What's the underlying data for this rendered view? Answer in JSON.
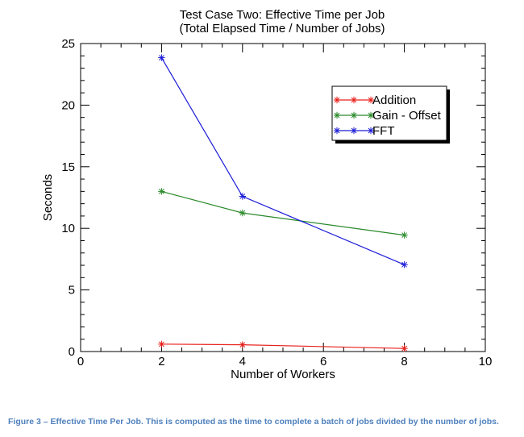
{
  "chart_data": {
    "type": "line",
    "title": "Test Case Two: Effective Time per Job",
    "subtitle": "(Total Elapsed Time / Number of Jobs)",
    "xlabel": "Number of Workers",
    "ylabel": "Seconds",
    "xlim": [
      0,
      10
    ],
    "ylim": [
      0,
      25
    ],
    "x_ticks": [
      "0",
      "2",
      "4",
      "6",
      "8",
      "10"
    ],
    "y_ticks": [
      "0",
      "5",
      "10",
      "15",
      "20",
      "25"
    ],
    "legend_position": "top-right",
    "grid": false,
    "series": [
      {
        "name": "Addition",
        "color": "#e8201c",
        "x": [
          2,
          4,
          8
        ],
        "values": [
          0.6,
          0.55,
          0.25
        ]
      },
      {
        "name": "Gain - Offset",
        "color": "#2a8a2a",
        "x": [
          2,
          4,
          8
        ],
        "values": [
          13.0,
          11.25,
          9.45
        ]
      },
      {
        "name": "FFT",
        "color": "#1c1cd8",
        "x": [
          2,
          4,
          8
        ],
        "values": [
          23.85,
          12.6,
          7.05
        ]
      }
    ]
  },
  "caption": "Figure 3 – Effective Time Per Job. This is computed as the time to complete a batch of jobs divided by the number of jobs."
}
